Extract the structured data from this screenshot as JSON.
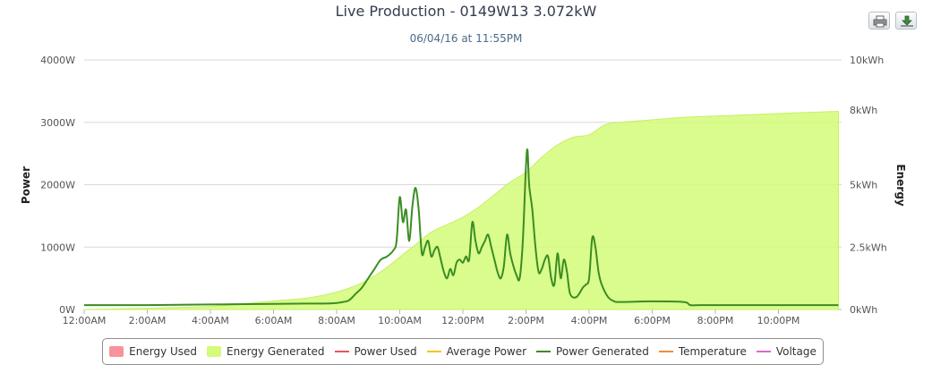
{
  "chart_data": {
    "type": "area",
    "title": "Live Production - 0149W13 3.072kW",
    "subtitle": "06/04/16 at 11:55PM",
    "left_axis": {
      "title": "Power",
      "range": [
        0,
        4000
      ],
      "ticks": [
        0,
        1000,
        2000,
        3000,
        4000
      ],
      "tick_labels": [
        "0W",
        "1000W",
        "2000W",
        "3000W",
        "4000W"
      ]
    },
    "right_axis": {
      "title": "Energy",
      "range": [
        0,
        10
      ],
      "ticks": [
        0,
        2.5,
        5,
        8,
        10
      ],
      "tick_labels": [
        "0kWh",
        "2.5kWh",
        "5kWh",
        "8kWh",
        "10kWh"
      ]
    },
    "x_axis": {
      "range": [
        0,
        24
      ],
      "ticks": [
        0,
        2,
        4,
        6,
        8,
        10,
        12,
        14,
        16,
        18,
        20,
        22
      ],
      "tick_labels": [
        "12:00AM",
        "2:00AM",
        "4:00AM",
        "6:00AM",
        "8:00AM",
        "10:00AM",
        "12:00PM",
        "2:00PM",
        "4:00PM",
        "6:00PM",
        "8:00PM",
        "10:00PM"
      ]
    },
    "grid": "horizontal",
    "legend_position": "bottom",
    "legend": [
      {
        "name": "Energy Used",
        "kind": "box",
        "color": "#f7939b"
      },
      {
        "name": "Energy Generated",
        "kind": "box",
        "color": "#d4fb79"
      },
      {
        "name": "Power Used",
        "kind": "line",
        "color": "#e8555a"
      },
      {
        "name": "Average Power",
        "kind": "line",
        "color": "#f5c518"
      },
      {
        "name": "Power Generated",
        "kind": "line",
        "color": "#3b8d22"
      },
      {
        "name": "Temperature",
        "kind": "line",
        "color": "#f28a3a"
      },
      {
        "name": "Voltage",
        "kind": "line",
        "color": "#e066c8"
      }
    ],
    "series": [
      {
        "name": "Energy Generated",
        "axis": "right",
        "color": "#d4fb79",
        "x": [
          0,
          2,
          4,
          5,
          6,
          7,
          7.5,
          8,
          8.5,
          9,
          9.5,
          10,
          10.5,
          11,
          11.5,
          12,
          12.5,
          13,
          13.5,
          14,
          14.5,
          15,
          15.5,
          16,
          16.5,
          17,
          18,
          19,
          20,
          21,
          22,
          23,
          23.9
        ],
        "values": [
          0,
          0.05,
          0.12,
          0.22,
          0.34,
          0.45,
          0.55,
          0.7,
          0.9,
          1.2,
          1.6,
          2.1,
          2.6,
          3.1,
          3.4,
          3.7,
          4.1,
          4.6,
          5.1,
          5.5,
          6.1,
          6.6,
          6.9,
          7.0,
          7.4,
          7.5,
          7.6,
          7.7,
          7.75,
          7.8,
          7.85,
          7.9,
          7.94
        ]
      },
      {
        "name": "Power Generated",
        "axis": "left",
        "color": "#3b8d22",
        "x": [
          0,
          2,
          4,
          6,
          7,
          7.5,
          7.9,
          8.2,
          8.4,
          8.6,
          8.8,
          9.0,
          9.2,
          9.4,
          9.6,
          9.8,
          9.9,
          10.0,
          10.1,
          10.2,
          10.3,
          10.4,
          10.5,
          10.6,
          10.7,
          10.8,
          10.9,
          11.0,
          11.1,
          11.2,
          11.3,
          11.4,
          11.5,
          11.6,
          11.7,
          11.8,
          11.9,
          12.0,
          12.1,
          12.2,
          12.3,
          12.4,
          12.5,
          12.6,
          12.7,
          12.8,
          12.9,
          13.0,
          13.1,
          13.2,
          13.3,
          13.4,
          13.5,
          13.6,
          13.7,
          13.8,
          13.9,
          14.0,
          14.05,
          14.1,
          14.2,
          14.3,
          14.4,
          14.5,
          14.6,
          14.7,
          14.8,
          14.9,
          15.0,
          15.1,
          15.2,
          15.3,
          15.4,
          15.6,
          15.8,
          15.9,
          16.0,
          16.1,
          16.2,
          16.3,
          16.4,
          16.6,
          16.8,
          17,
          18,
          19,
          19.2,
          19.5,
          20,
          22,
          23.9
        ],
        "values": [
          70,
          70,
          80,
          90,
          95,
          95,
          100,
          120,
          150,
          250,
          350,
          500,
          650,
          800,
          850,
          950,
          1100,
          1800,
          1400,
          1600,
          1100,
          1650,
          1950,
          1600,
          900,
          1000,
          1100,
          850,
          950,
          1000,
          800,
          600,
          500,
          650,
          550,
          750,
          800,
          750,
          850,
          800,
          1400,
          1100,
          900,
          1000,
          1100,
          1200,
          1000,
          800,
          600,
          500,
          700,
          1200,
          900,
          700,
          550,
          500,
          1100,
          2300,
          2550,
          2000,
          1600,
          1000,
          600,
          650,
          800,
          850,
          500,
          400,
          900,
          500,
          800,
          600,
          250,
          200,
          350,
          400,
          500,
          1150,
          1000,
          600,
          400,
          200,
          130,
          120,
          130,
          120,
          70,
          70,
          70,
          70,
          70
        ]
      }
    ]
  }
}
